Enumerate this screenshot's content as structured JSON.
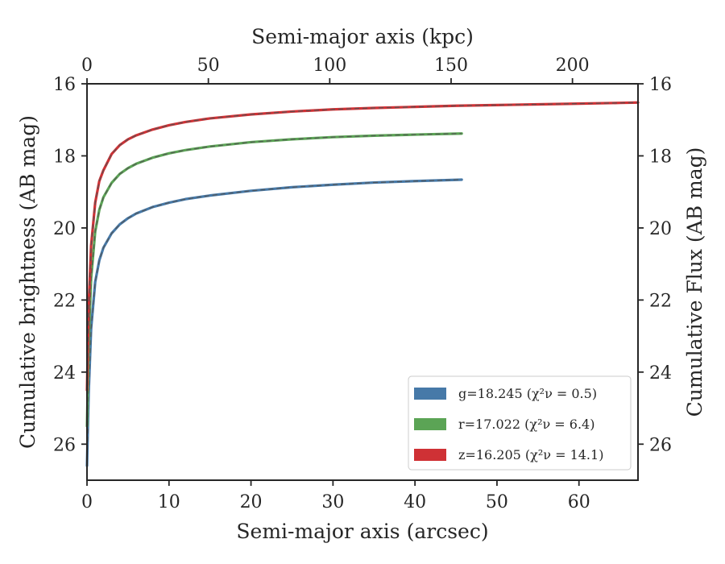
{
  "chart_data": {
    "type": "line",
    "xlabel_bottom": "Semi-major axis (arcsec)",
    "xlabel_top": "Semi-major axis (kpc)",
    "ylabel_left": "Cumulative brightness (AB mag)",
    "ylabel_right": "Cumulative Flux (AB mag)",
    "xlim_bottom": [
      0,
      67.2
    ],
    "xlim_top": [
      0,
      227
    ],
    "ylim": [
      27,
      16
    ],
    "yinverted": true,
    "xticks_bottom": [
      0,
      10,
      20,
      30,
      40,
      50,
      60
    ],
    "xticks_top": [
      0,
      50,
      100,
      150,
      200
    ],
    "yticks": [
      16,
      18,
      20,
      22,
      24,
      26
    ],
    "legend_position": "lower-right",
    "grid": false,
    "series": [
      {
        "band": "g",
        "mag_label": "g=18.245",
        "chi2_label": "(χ²ν = 0.5)",
        "color": "#4679a8",
        "x": [
          0,
          0.2,
          0.5,
          1,
          1.5,
          2,
          3,
          4,
          5,
          6,
          8,
          10,
          12,
          15,
          20,
          25,
          30,
          35,
          40,
          45.7
        ],
        "y": [
          26.6,
          24.6,
          22.8,
          21.5,
          20.9,
          20.55,
          20.15,
          19.9,
          19.73,
          19.6,
          19.42,
          19.3,
          19.2,
          19.1,
          18.97,
          18.87,
          18.8,
          18.74,
          18.7,
          18.66
        ]
      },
      {
        "band": "r",
        "mag_label": "r=17.022",
        "chi2_label": "(χ²ν = 6.4)",
        "color": "#5ba455",
        "x": [
          0,
          0.2,
          0.5,
          1,
          1.5,
          2,
          3,
          4,
          5,
          6,
          8,
          10,
          12,
          15,
          20,
          25,
          30,
          35,
          40,
          45.7
        ],
        "y": [
          25.5,
          23.2,
          21.4,
          20.1,
          19.5,
          19.15,
          18.75,
          18.5,
          18.34,
          18.22,
          18.05,
          17.93,
          17.84,
          17.74,
          17.62,
          17.54,
          17.48,
          17.44,
          17.41,
          17.38
        ]
      },
      {
        "band": "z",
        "mag_label": "z=16.205",
        "chi2_label": "(χ²ν = 14.1)",
        "color": "#cf3135",
        "x": [
          0,
          0.2,
          0.5,
          1,
          1.5,
          2,
          3,
          4,
          5,
          6,
          8,
          10,
          12,
          15,
          20,
          25,
          30,
          35,
          40,
          45,
          50,
          55,
          60,
          65,
          67.2
        ],
        "y": [
          24.5,
          22.2,
          20.5,
          19.3,
          18.7,
          18.4,
          17.95,
          17.7,
          17.54,
          17.43,
          17.27,
          17.15,
          17.06,
          16.96,
          16.85,
          16.77,
          16.71,
          16.67,
          16.64,
          16.61,
          16.59,
          16.57,
          16.55,
          16.53,
          16.52
        ]
      }
    ]
  }
}
